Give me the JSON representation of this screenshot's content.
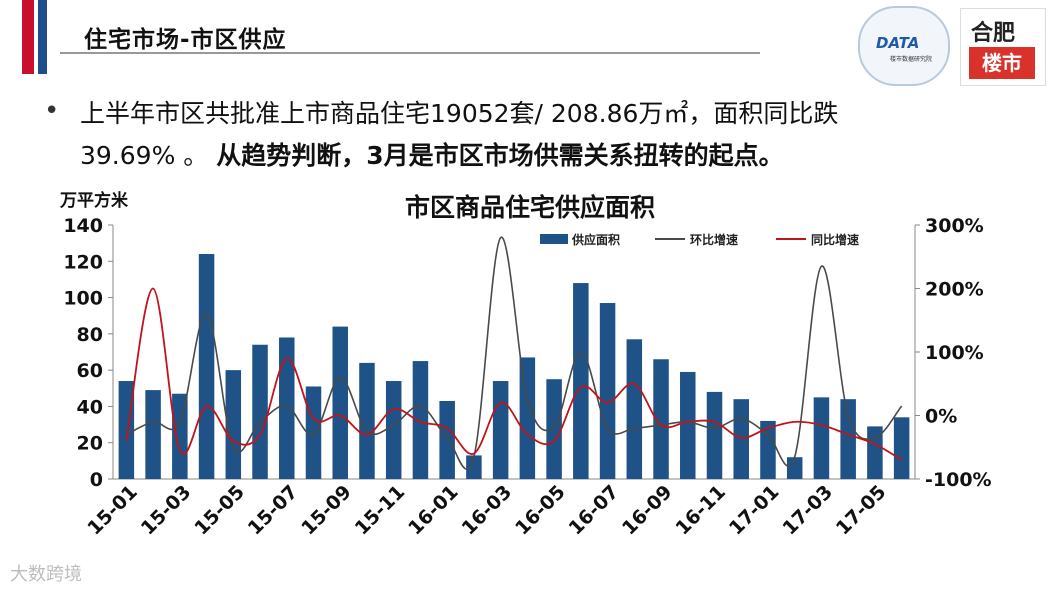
{
  "header": {
    "title": "住宅市场-市区供应",
    "logo_left_text": "DATA",
    "logo_left_sub": "楼市数据研究院",
    "logo_right_top": "合肥",
    "logo_right_bottom": "楼市"
  },
  "bullet": {
    "line1": "上半年市区共批准上市商品住宅19052套/ 208.86万㎡，面积同比跌",
    "line2_normal": "39.69% 。 ",
    "line2_bold": "从趋势判断，3月是市区市场供需关系扭转的起点。"
  },
  "watermark": "大数跨境",
  "colors": {
    "bar": "#1f5387",
    "mom_line": "#4a4a4a",
    "yoy_line": "#c0141b",
    "title_red": "#c8102e",
    "title_blue": "#1f4e8c"
  },
  "chart_data": {
    "type": "bar",
    "title": "市区商品住宅供应面积",
    "ylabel": "万平方米",
    "ylim": [
      0,
      140
    ],
    "y2lim": [
      -100,
      300
    ],
    "y_ticks": [
      "0",
      "20",
      "40",
      "60",
      "80",
      "100",
      "120",
      "140"
    ],
    "y2_ticks": [
      "-100%",
      "0%",
      "100%",
      "200%",
      "300%"
    ],
    "legend_position": "top-right",
    "categories": [
      "15-01",
      "15-02",
      "15-03",
      "15-04",
      "15-05",
      "15-06",
      "15-07",
      "15-08",
      "15-09",
      "15-10",
      "15-11",
      "15-12",
      "16-01",
      "16-02",
      "16-03",
      "16-04",
      "16-05",
      "16-06",
      "16-07",
      "16-08",
      "16-09",
      "16-10",
      "16-11",
      "16-12",
      "17-01",
      "17-02",
      "17-03",
      "17-04",
      "17-05",
      "17-06"
    ],
    "x_tick_labels": [
      "15-01",
      "15-03",
      "15-05",
      "15-07",
      "15-09",
      "15-11",
      "16-01",
      "16-03",
      "16-05",
      "16-07",
      "16-09",
      "16-11",
      "17-01",
      "17-03",
      "17-05"
    ],
    "series": [
      {
        "name": "供应面积",
        "type": "bar",
        "axis": "left",
        "values": [
          54,
          49,
          47,
          124,
          60,
          74,
          78,
          51,
          84,
          64,
          54,
          65,
          43,
          13,
          54,
          67,
          55,
          108,
          97,
          77,
          66,
          59,
          48,
          44,
          32,
          12,
          45,
          44,
          29,
          34
        ]
      },
      {
        "name": "环比增速",
        "type": "line",
        "axis": "right",
        "values": [
          -30,
          -10,
          -10,
          160,
          -50,
          -10,
          15,
          -30,
          60,
          -25,
          -15,
          15,
          -35,
          -65,
          280,
          25,
          -18,
          100,
          -20,
          -20,
          -15,
          -10,
          -20,
          -5,
          -30,
          -65,
          235,
          0,
          -35,
          15
        ]
      },
      {
        "name": "同比增速",
        "type": "line",
        "axis": "right",
        "values": [
          -40,
          200,
          -55,
          15,
          -40,
          -30,
          90,
          -5,
          0,
          -30,
          10,
          -10,
          -20,
          -60,
          20,
          -30,
          -40,
          45,
          20,
          50,
          -15,
          -10,
          -10,
          -35,
          -20,
          -10,
          -15,
          -30,
          -45,
          -70
        ]
      }
    ]
  }
}
